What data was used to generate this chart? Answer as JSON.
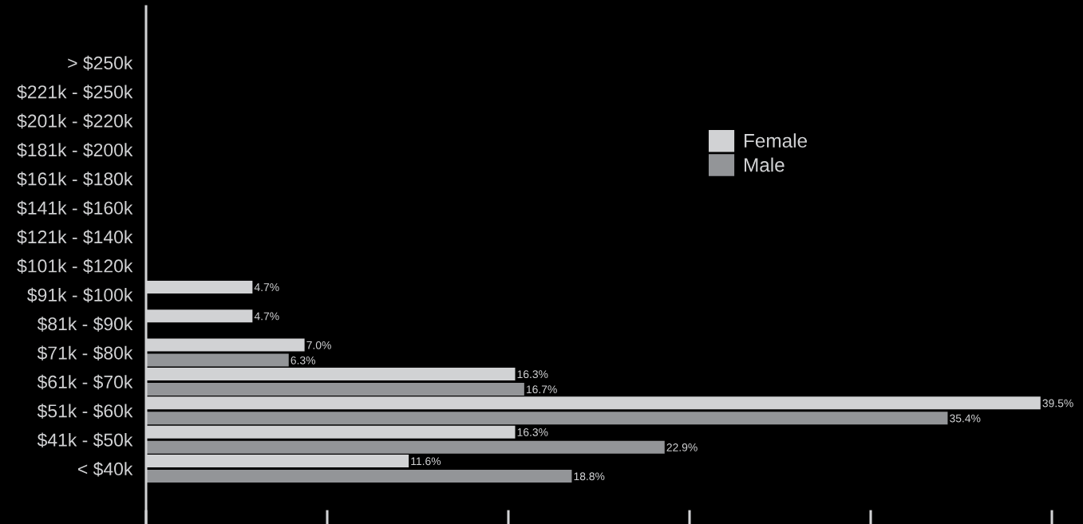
{
  "chart_data": {
    "type": "bar",
    "orientation": "horizontal",
    "categories": [
      "> $250k",
      "$221k - $250k",
      "$201k - $220k",
      "$181k - $200k",
      "$161k - $180k",
      "$141k - $160k",
      "$121k - $140k",
      "$101k - $120k",
      "$91k - $100k",
      "$81k - $90k",
      "$71k - $80k",
      "$61k - $70k",
      "$51k - $60k",
      "$41k - $50k",
      "< $40k"
    ],
    "series": [
      {
        "name": "Female",
        "color": "#d1d2d4",
        "values": [
          null,
          null,
          null,
          null,
          null,
          null,
          null,
          null,
          4.7,
          4.7,
          7.0,
          16.3,
          39.5,
          16.3,
          11.6
        ],
        "value_labels": [
          null,
          null,
          null,
          null,
          null,
          null,
          null,
          null,
          "4.7%",
          "4.7%",
          "7.0%",
          "16.3%",
          "39.5%",
          "16.3%",
          "11.6%"
        ]
      },
      {
        "name": "Male",
        "color": "#939598",
        "values": [
          null,
          null,
          null,
          null,
          null,
          null,
          null,
          null,
          null,
          null,
          6.3,
          16.7,
          35.4,
          22.9,
          18.8
        ],
        "value_labels": [
          null,
          null,
          null,
          null,
          null,
          null,
          null,
          null,
          null,
          null,
          "6.3%",
          "16.7%",
          "35.4%",
          "22.9%",
          "18.8%"
        ]
      }
    ],
    "tick_labels": "y",
    "grid": false,
    "legend": "top right"
  }
}
